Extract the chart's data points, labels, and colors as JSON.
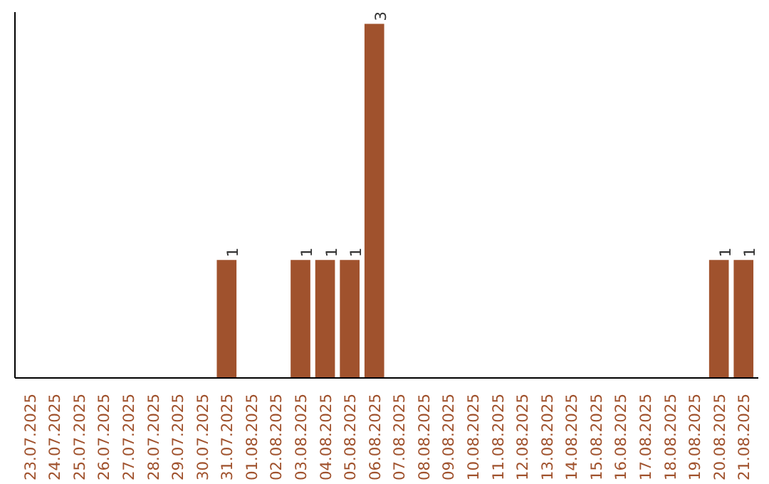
{
  "chart_data": {
    "type": "bar",
    "categories": [
      "23.07.2025",
      "24.07.2025",
      "25.07.2025",
      "26.07.2025",
      "27.07.2025",
      "28.07.2025",
      "29.07.2025",
      "30.07.2025",
      "31.07.2025",
      "01.08.2025",
      "02.08.2025",
      "03.08.2025",
      "04.08.2025",
      "05.08.2025",
      "06.08.2025",
      "07.08.2025",
      "08.08.2025",
      "09.08.2025",
      "10.08.2025",
      "11.08.2025",
      "12.08.2025",
      "13.08.2025",
      "14.08.2025",
      "15.08.2025",
      "16.08.2025",
      "17.08.2025",
      "18.08.2025",
      "19.08.2025",
      "20.08.2025",
      "21.08.2025"
    ],
    "values": [
      0,
      0,
      0,
      0,
      0,
      0,
      0,
      0,
      1,
      0,
      0,
      1,
      1,
      1,
      3,
      0,
      0,
      0,
      0,
      0,
      0,
      0,
      0,
      0,
      0,
      0,
      0,
      0,
      1,
      1
    ],
    "value_labels": [
      null,
      null,
      null,
      null,
      null,
      null,
      null,
      null,
      "1",
      null,
      null,
      "1",
      "1",
      "1",
      "3",
      null,
      null,
      null,
      null,
      null,
      null,
      null,
      null,
      null,
      null,
      null,
      null,
      null,
      "1",
      "1"
    ],
    "color": "#a0522d",
    "ylim": [
      0,
      3.1
    ],
    "grid": false
  }
}
